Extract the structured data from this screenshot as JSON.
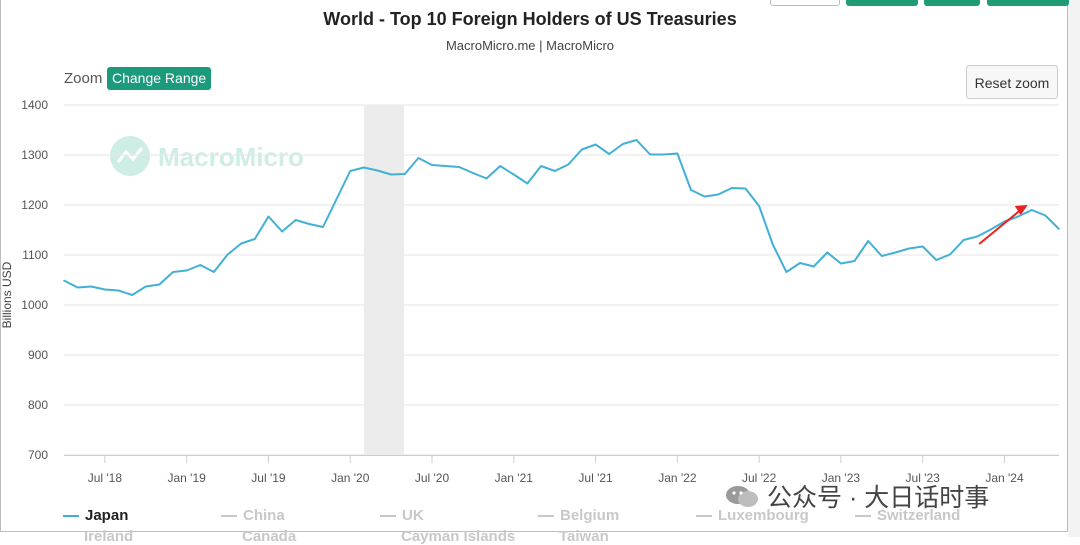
{
  "header": {
    "title": "World - Top 10 Foreign Holders of US Treasuries",
    "subtitle": "MacroMicro.me | MacroMicro"
  },
  "controls": {
    "zoom_label": "Zoom",
    "change_range_label": "Change Range",
    "reset_zoom_label": "Reset zoom"
  },
  "watermark": {
    "chart_logo_text": "MacroMicro",
    "wechat_text": "公众号 · 大日话时事"
  },
  "colors": {
    "japan_line": "#42b0d5",
    "shaded_region": "#ececec",
    "grid": "#e6e6e6",
    "accent_green": "#1b9a7c",
    "arrow_red": "#e8231d",
    "legend_hidden": "#c8c8c8"
  },
  "legend": {
    "items": [
      {
        "label": "Japan",
        "active": true
      },
      {
        "label": "China",
        "active": false
      },
      {
        "label": "UK",
        "active": false
      },
      {
        "label": "Belgium",
        "active": false
      },
      {
        "label": "Luxembourg",
        "active": false
      },
      {
        "label": "Switzerland",
        "active": false
      }
    ],
    "row2": [
      "Ireland",
      "Canada",
      "Cayman Islands",
      "Taiwan"
    ]
  },
  "chart_data": {
    "type": "line",
    "title": "World - Top 10 Foreign Holders of US Treasuries",
    "ylabel": "Billions USD",
    "xlabel": "",
    "ylim": [
      700,
      1400
    ],
    "yticks": [
      700,
      800,
      900,
      1000,
      1100,
      1200,
      1300,
      1400
    ],
    "x_tick_labels": [
      "Jul '18",
      "Jan '19",
      "Jul '19",
      "Jan '20",
      "Jul '20",
      "Jan '21",
      "Jul '21",
      "Jan '22",
      "Jul '22",
      "Jan '23",
      "Jul '23",
      "Jan '24"
    ],
    "x_range": [
      "2018-04",
      "2024-05"
    ],
    "shaded_period": [
      "2020-02",
      "2020-04"
    ],
    "annotation": "red arrow pointing up toward the latest rise",
    "series": [
      {
        "name": "Japan",
        "x": [
          "2018-04",
          "2018-05",
          "2018-06",
          "2018-07",
          "2018-08",
          "2018-09",
          "2018-10",
          "2018-11",
          "2018-12",
          "2019-01",
          "2019-02",
          "2019-03",
          "2019-04",
          "2019-05",
          "2019-06",
          "2019-07",
          "2019-08",
          "2019-09",
          "2019-10",
          "2019-11",
          "2019-12",
          "2020-01",
          "2020-02",
          "2020-03",
          "2020-04",
          "2020-05",
          "2020-06",
          "2020-07",
          "2020-08",
          "2020-09",
          "2020-10",
          "2020-11",
          "2020-12",
          "2021-01",
          "2021-02",
          "2021-03",
          "2021-04",
          "2021-05",
          "2021-06",
          "2021-07",
          "2021-08",
          "2021-09",
          "2021-10",
          "2021-11",
          "2021-12",
          "2022-01",
          "2022-02",
          "2022-03",
          "2022-04",
          "2022-05",
          "2022-06",
          "2022-07",
          "2022-08",
          "2022-09",
          "2022-10",
          "2022-11",
          "2022-12",
          "2023-01",
          "2023-02",
          "2023-03",
          "2023-04",
          "2023-05",
          "2023-06",
          "2023-07",
          "2023-08",
          "2023-09",
          "2023-10",
          "2023-11",
          "2023-12",
          "2024-01",
          "2024-02",
          "2024-03",
          "2024-04",
          "2024-05"
        ],
        "values": [
          1049,
          1035,
          1037,
          1031,
          1029,
          1020,
          1037,
          1041,
          1066,
          1069,
          1080,
          1066,
          1101,
          1123,
          1132,
          1177,
          1147,
          1170,
          1162,
          1156,
          1212,
          1268,
          1275,
          1269,
          1261,
          1262,
          1294,
          1280,
          1278,
          1276,
          1264,
          1253,
          1278,
          1261,
          1243,
          1278,
          1268,
          1281,
          1311,
          1321,
          1302,
          1322,
          1330,
          1301,
          1301,
          1303,
          1230,
          1217,
          1221,
          1234,
          1233,
          1198,
          1121,
          1066,
          1084,
          1077,
          1105,
          1083,
          1088,
          1128,
          1098,
          1105,
          1113,
          1117,
          1090,
          1101,
          1130,
          1137,
          1151,
          1167,
          1177,
          1190,
          1179,
          1152
        ]
      }
    ]
  }
}
